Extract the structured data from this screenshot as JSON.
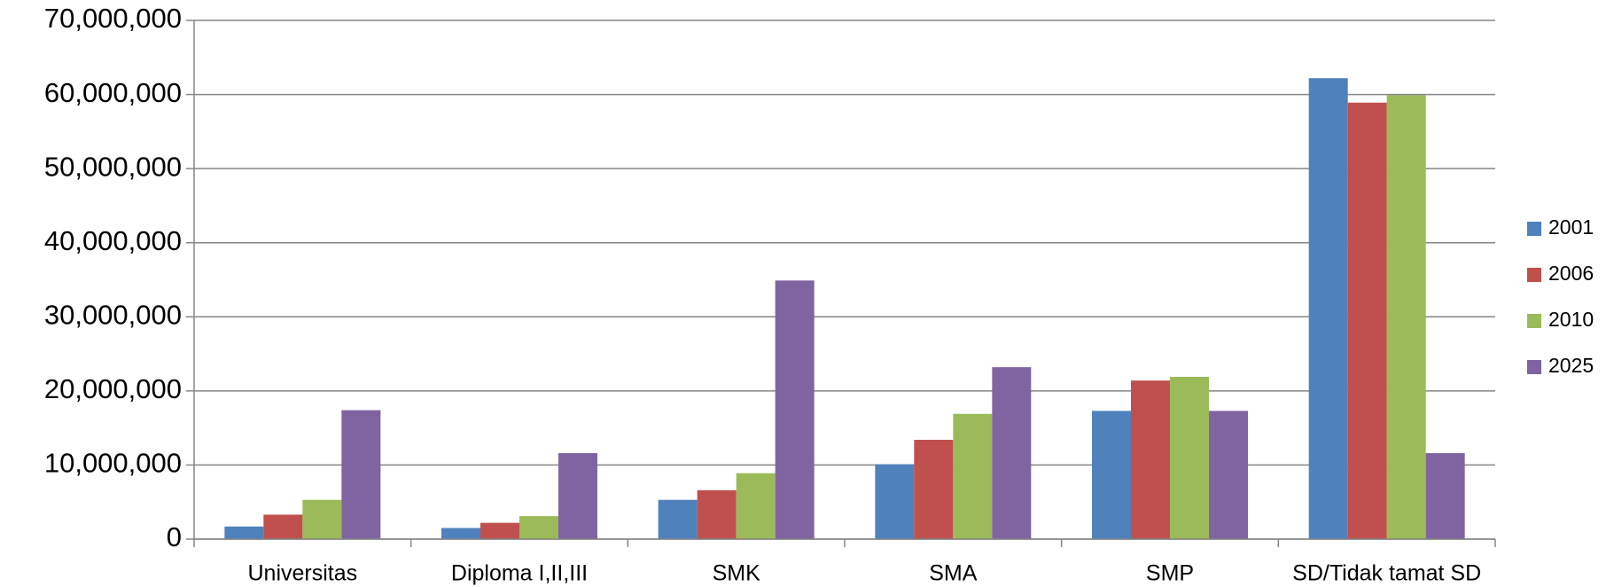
{
  "chart_data": {
    "type": "bar",
    "categories": [
      "Universitas",
      "Diploma I,II,III",
      "SMK",
      "SMA",
      "SMP",
      "SD/Tidak tamat SD"
    ],
    "series": [
      {
        "name": "2001",
        "color": "#4f81bd",
        "values": [
          1700000,
          1500000,
          5300000,
          10100000,
          17300000,
          62200000
        ]
      },
      {
        "name": "2006",
        "color": "#c0504d",
        "values": [
          3300000,
          2200000,
          6600000,
          13400000,
          21400000,
          58900000
        ]
      },
      {
        "name": "2010",
        "color": "#9bbb59",
        "values": [
          5300000,
          3100000,
          8900000,
          16900000,
          21900000,
          59900000
        ]
      },
      {
        "name": "2025",
        "color": "#8064a2",
        "values": [
          17400000,
          11600000,
          34900000,
          23200000,
          17300000,
          11600000
        ]
      }
    ],
    "ylim": [
      0,
      70000000
    ],
    "yticks": [
      0,
      {
        "value": 10000000,
        "label": "10,000,000"
      },
      {
        "value": 20000000,
        "label": "20,000,000"
      },
      {
        "value": 30000000,
        "label": "30,000,000"
      },
      {
        "value": 40000000,
        "label": "40,000,000"
      },
      {
        "value": 50000000,
        "label": "50,000,000"
      },
      {
        "value": 60000000,
        "label": "60,000,000"
      },
      {
        "value": 70000000,
        "label": "70,000,000"
      }
    ],
    "grid": true,
    "legend": "right"
  }
}
